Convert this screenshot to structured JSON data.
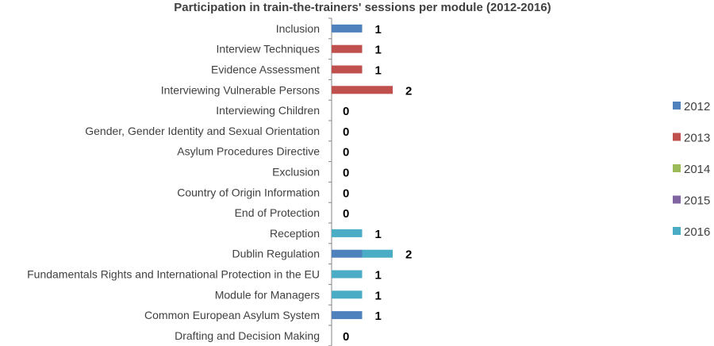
{
  "chart_data": {
    "type": "bar",
    "orientation": "horizontal",
    "stacked": true,
    "title": "Participation in train-the-trainers' sessions per module (2012-2016)",
    "xlabel": "",
    "ylabel": "",
    "xlim": [
      0,
      2
    ],
    "grid": false,
    "legend_position": "right",
    "categories": [
      "Inclusion",
      "Interview Techniques",
      "Evidence Assessment",
      "Interviewing Vulnerable Persons",
      "Interviewing Children",
      "Gender, Gender Identity and Sexual Orientation",
      "Asylum Procedures Directive",
      "Exclusion",
      "Country of Origin Information",
      "End of Protection",
      "Reception",
      "Dublin Regulation",
      "Fundamentals Rights and International Protection in the EU",
      "Module for Managers",
      "Common European Asylum System",
      "Drafting and Decision Making"
    ],
    "series": [
      {
        "name": "2012",
        "color": "#4F81BD",
        "values": [
          1,
          0,
          0,
          0,
          0,
          0,
          0,
          0,
          0,
          0,
          0,
          1,
          0,
          0,
          1,
          0
        ]
      },
      {
        "name": "2013",
        "color": "#C0504D",
        "values": [
          0,
          1,
          1,
          2,
          0,
          0,
          0,
          0,
          0,
          0,
          0,
          0,
          0,
          0,
          0,
          0
        ]
      },
      {
        "name": "2014",
        "color": "#9BBB59",
        "values": [
          0,
          0,
          0,
          0,
          0,
          0,
          0,
          0,
          0,
          0,
          0,
          0,
          0,
          0,
          0,
          0
        ]
      },
      {
        "name": "2015",
        "color": "#8064A2",
        "values": [
          0,
          0,
          0,
          0,
          0,
          0,
          0,
          0,
          0,
          0,
          0,
          0,
          0,
          0,
          0,
          0
        ]
      },
      {
        "name": "2016",
        "color": "#4BACC6",
        "values": [
          0,
          0,
          0,
          0,
          0,
          0,
          0,
          0,
          0,
          0,
          1,
          1,
          1,
          1,
          0,
          0
        ]
      }
    ],
    "totals": [
      "1",
      "1",
      "1",
      "2",
      "0",
      "0",
      "0",
      "0",
      "0",
      "0",
      "1",
      "2",
      "1",
      "1",
      "1",
      "0"
    ]
  }
}
